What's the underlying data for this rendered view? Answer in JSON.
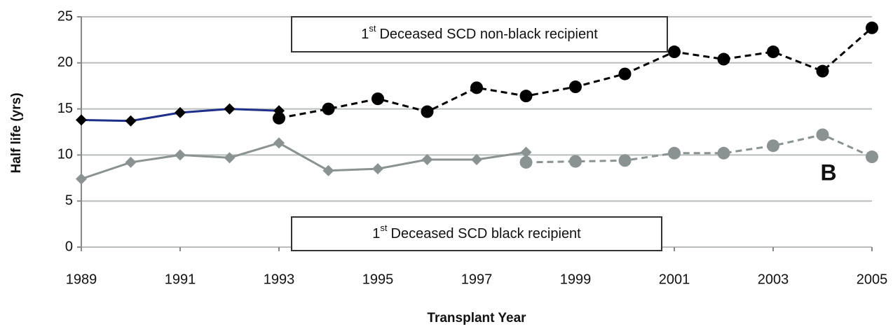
{
  "chart_data": {
    "type": "line",
    "y_label": "Half life (yrs)",
    "x_label": "Transplant Year",
    "xlim": [
      1989,
      2005
    ],
    "xticks": [
      1989,
      1991,
      1993,
      1995,
      1997,
      1999,
      2001,
      2003,
      2005
    ],
    "ylim": [
      0,
      25
    ],
    "yticks": [
      0,
      5,
      10,
      15,
      20,
      25
    ],
    "grid": true,
    "series": [
      {
        "x": [
          1989,
          1990,
          1991,
          1992,
          1993
        ],
        "values": [
          13.8,
          13.7,
          14.6,
          15.0,
          14.8
        ],
        "color": "#1f2f8a",
        "marker_color": "#000000",
        "marker": "diamond",
        "line": "solid"
      },
      {
        "x": [
          1993,
          1994,
          1995,
          1996,
          1997,
          1998,
          1999,
          2000,
          2001,
          2002,
          2003,
          2004,
          2005
        ],
        "values": [
          14.0,
          15.0,
          16.1,
          14.7,
          17.3,
          16.4,
          17.4,
          18.8,
          21.2,
          20.4,
          21.2,
          19.1,
          23.8
        ],
        "color": "#000000",
        "marker_color": "#000000",
        "marker": "circle",
        "line": "dashed"
      },
      {
        "x": [
          1989,
          1990,
          1991,
          1992,
          1993,
          1994,
          1995,
          1996,
          1997,
          1998
        ],
        "values": [
          7.4,
          9.2,
          10.0,
          9.7,
          11.3,
          8.3,
          8.5,
          9.5,
          9.5,
          10.3
        ],
        "color": "#8a9292",
        "marker_color": "#8a9292",
        "marker": "diamond",
        "line": "solid"
      },
      {
        "x": [
          1998,
          1999,
          2000,
          2001,
          2002,
          2003,
          2004,
          2005
        ],
        "values": [
          9.2,
          9.3,
          9.4,
          10.2,
          10.2,
          11.0,
          12.2,
          9.8
        ],
        "color": "#8a9292",
        "marker_color": "#8a9292",
        "marker": "circle",
        "line": "dashed"
      }
    ],
    "annotations": [
      {
        "number": "1",
        "sup": "st",
        "text": "Deceased SCD non-black recipient"
      },
      {
        "number": "1",
        "sup": "st",
        "text": "Deceased SCD black recipient"
      },
      {
        "text": "B"
      }
    ]
  }
}
